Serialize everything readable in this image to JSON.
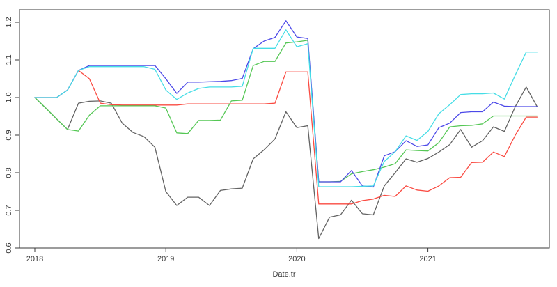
{
  "figure": {
    "xlabel": "Date.tr",
    "x_ticks": [
      {
        "label": "2018",
        "year": 2018
      },
      {
        "label": "2019",
        "year": 2019
      },
      {
        "label": "2020",
        "year": 2020
      },
      {
        "label": "2021",
        "year": 2021
      }
    ],
    "y_ticks": [
      {
        "label": "0.6",
        "value": 0.6
      },
      {
        "label": "0.7",
        "value": 0.7
      },
      {
        "label": "0.8",
        "value": 0.8
      },
      {
        "label": "0.9",
        "value": 0.9
      },
      {
        "label": "1.0",
        "value": 1.0
      },
      {
        "label": "1.1",
        "value": 1.1
      },
      {
        "label": "1.2",
        "value": 1.2
      }
    ],
    "colors": {
      "axis": "#3a3a3a",
      "box": "#3a3a3a",
      "background": "#ffffff",
      "series_gray": "#636363",
      "series_red": "#fa4b42",
      "series_green": "#55c755",
      "series_blue": "#4c49e8",
      "series_cyan": "#45dde6"
    }
  },
  "chart_data": {
    "type": "line",
    "title": "",
    "xlabel": "Date.tr",
    "ylabel": "",
    "grid": false,
    "legend": "none",
    "x_start_year": 2018,
    "x_frequency": "monthly",
    "xlim_years": [
      2017.883,
      2021.927
    ],
    "ylim": [
      0.6,
      1.233
    ],
    "y_tick_range": [
      0.6,
      1.2
    ],
    "series": [
      {
        "name": "gray",
        "color_key": "series_gray",
        "values": [
          1.0,
          0.972,
          0.943,
          0.915,
          0.985,
          0.99,
          0.991,
          0.985,
          0.932,
          0.907,
          0.896,
          0.868,
          0.75,
          0.713,
          0.735,
          0.735,
          0.713,
          0.753,
          0.757,
          0.759,
          0.837,
          0.861,
          0.89,
          0.962,
          0.92,
          0.925,
          0.625,
          0.682,
          0.688,
          0.727,
          0.691,
          0.688,
          0.765,
          0.8,
          0.837,
          0.828,
          0.838,
          0.855,
          0.875,
          0.915,
          0.868,
          0.885,
          0.922,
          0.91,
          0.976,
          1.028,
          0.976
        ]
      },
      {
        "name": "red",
        "color_key": "series_red",
        "values": [
          1.0,
          1.0,
          1.0,
          1.02,
          1.072,
          1.05,
          0.985,
          0.981,
          0.98,
          0.98,
          0.98,
          0.98,
          0.98,
          0.98,
          0.983,
          0.983,
          0.983,
          0.983,
          0.983,
          0.983,
          0.983,
          0.983,
          0.985,
          1.068,
          1.068,
          1.068,
          0.717,
          0.717,
          0.717,
          0.717,
          0.726,
          0.73,
          0.74,
          0.737,
          0.765,
          0.754,
          0.751,
          0.765,
          0.787,
          0.788,
          0.827,
          0.828,
          0.855,
          0.843,
          0.9,
          0.948,
          0.948
        ]
      },
      {
        "name": "green",
        "color_key": "series_green",
        "values": [
          1.0,
          0.972,
          0.943,
          0.915,
          0.911,
          0.953,
          0.978,
          0.978,
          0.978,
          0.978,
          0.978,
          0.978,
          0.972,
          0.906,
          0.904,
          0.939,
          0.939,
          0.94,
          0.991,
          0.993,
          1.085,
          1.096,
          1.096,
          1.145,
          1.148,
          1.152,
          0.776,
          0.776,
          0.777,
          0.797,
          0.803,
          0.808,
          0.815,
          0.824,
          0.861,
          0.859,
          0.858,
          0.88,
          0.922,
          0.925,
          0.926,
          0.93,
          0.951,
          0.951,
          0.951,
          0.951,
          0.951
        ]
      },
      {
        "name": "blue",
        "color_key": "series_blue",
        "values": [
          1.0,
          1.0,
          1.0,
          1.02,
          1.072,
          1.085,
          1.085,
          1.085,
          1.085,
          1.085,
          1.085,
          1.085,
          1.05,
          1.011,
          1.041,
          1.041,
          1.042,
          1.043,
          1.045,
          1.051,
          1.13,
          1.15,
          1.16,
          1.204,
          1.161,
          1.157,
          0.776,
          0.776,
          0.776,
          0.806,
          0.765,
          0.762,
          0.845,
          0.856,
          0.885,
          0.87,
          0.874,
          0.92,
          0.932,
          0.96,
          0.962,
          0.962,
          0.988,
          0.977,
          0.976,
          0.976,
          0.976
        ]
      },
      {
        "name": "cyan",
        "color_key": "series_cyan",
        "values": [
          1.0,
          1.0,
          1.0,
          1.02,
          1.072,
          1.082,
          1.082,
          1.082,
          1.082,
          1.082,
          1.082,
          1.075,
          1.02,
          0.995,
          1.012,
          1.024,
          1.028,
          1.028,
          1.028,
          1.03,
          1.131,
          1.131,
          1.131,
          1.18,
          1.135,
          1.143,
          0.763,
          0.763,
          0.763,
          0.763,
          0.764,
          0.765,
          0.83,
          0.856,
          0.898,
          0.886,
          0.91,
          0.957,
          0.981,
          1.008,
          1.01,
          1.01,
          1.012,
          0.996,
          1.06,
          1.121,
          1.121
        ]
      }
    ]
  }
}
